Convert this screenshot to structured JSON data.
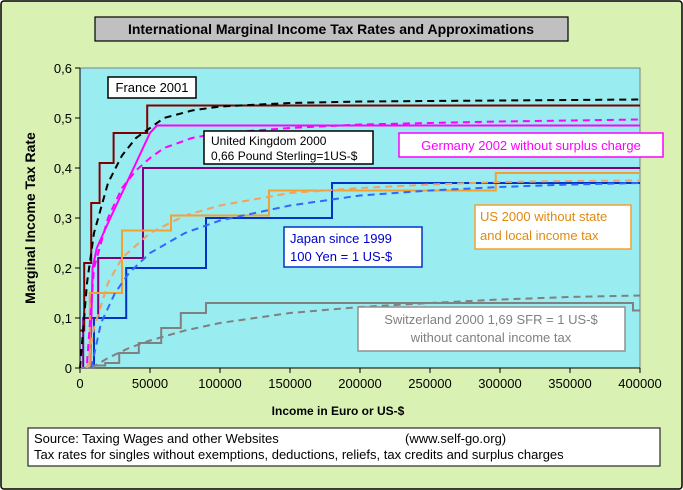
{
  "title": "International Marginal  Income Tax Rates and Approximations",
  "source": {
    "line1_left": "Source: Taxing Wages and other Websites",
    "line1_right": "(www.self-go.org)",
    "line2": "Tax rates for singles  without exemptions, deductions, reliefs, tax credits and surplus charges"
  },
  "labels": {
    "france": "France 2001",
    "uk_line1": "United Kingdom 2000",
    "uk_line2": "0,66 Pound Sterling=1US-$",
    "germany": "Germany 2002 without surplus charge",
    "us_line1": "US 2000 without state",
    "us_line2": "and local income tax",
    "japan_line1": "Japan since 1999",
    "japan_line2": "100 Yen = 1 US-$",
    "swiss_line1": "Switzerland 2000  1,69 SFR = 1 US-$",
    "swiss_line2": "without cantonal income tax"
  },
  "colors": {
    "page_bg": "#d9f2b4",
    "plot_bg": "#99ecf0",
    "france": "#800000",
    "uk": "#800080",
    "germany": "#ff00ff",
    "us": "#f4a030",
    "japan": "#0033cc",
    "switzerland": "#808080",
    "france_approx": "#000000",
    "germany_approx": "#ff00ff",
    "us_approx": "#f4a060",
    "japan_approx": "#3366ff",
    "switzerland_approx": "#808080"
  },
  "chart_data": {
    "type": "line",
    "title": "International Marginal  Income Tax Rates and Approximations",
    "xlabel": "Income in Euro or US-$",
    "ylabel": "Marginal Income Tax Rate",
    "xlim": [
      0,
      400000
    ],
    "ylim": [
      0,
      0.6
    ],
    "xticks": [
      0,
      50000,
      100000,
      150000,
      200000,
      250000,
      300000,
      350000,
      400000
    ],
    "xtick_labels": [
      "0",
      "50000",
      "100000",
      "150000",
      "200000",
      "250000",
      "300000",
      "350000",
      "400000"
    ],
    "yticks": [
      0,
      0.1,
      0.2,
      0.3,
      0.4,
      0.5,
      0.6
    ],
    "ytick_labels": [
      "0",
      "0,1",
      "0,2",
      "0,3",
      "0,4",
      "0,5",
      "0,6"
    ],
    "grid": false,
    "series": [
      {
        "name": "France 2001",
        "style": "step",
        "color_key": "france",
        "x": [
          0,
          3000,
          3000,
          8000,
          8000,
          14000,
          14000,
          24000,
          24000,
          38000,
          38000,
          48000,
          48000,
          400000
        ],
        "y": [
          0.075,
          0.075,
          0.21,
          0.21,
          0.33,
          0.33,
          0.41,
          0.41,
          0.47,
          0.47,
          0.47,
          0.47,
          0.525,
          0.525
        ]
      },
      {
        "name": "United Kingdom 2000",
        "style": "step",
        "color_key": "uk",
        "x": [
          0,
          2300,
          2300,
          13000,
          13000,
          45000,
          45000,
          400000
        ],
        "y": [
          0,
          0,
          0.1,
          0.1,
          0.22,
          0.22,
          0.4,
          0.4
        ]
      },
      {
        "name": "Germany 2002 without surplus charge",
        "style": "line",
        "color_key": "germany",
        "x": [
          0,
          7300,
          9000,
          12000,
          20000,
          30000,
          40000,
          50000,
          55000,
          400000
        ],
        "y": [
          0,
          0,
          0.2,
          0.24,
          0.29,
          0.35,
          0.41,
          0.47,
          0.485,
          0.485
        ]
      },
      {
        "name": "US 2000 without state and local income tax",
        "style": "step",
        "color_key": "us",
        "x": [
          0,
          7000,
          7000,
          28000,
          28000,
          30000,
          30000,
          65000,
          65000,
          135000,
          135000,
          297000,
          297000,
          400000
        ],
        "y": [
          0,
          0,
          0.15,
          0.15,
          0.15,
          0.15,
          0.275,
          0.275,
          0.305,
          0.305,
          0.355,
          0.355,
          0.39,
          0.39
        ]
      },
      {
        "name": "Japan since 1999",
        "style": "step",
        "color_key": "japan",
        "x": [
          0,
          10000,
          10000,
          33000,
          33000,
          90000,
          90000,
          180000,
          180000,
          400000
        ],
        "y": [
          0,
          0,
          0.1,
          0.1,
          0.2,
          0.2,
          0.3,
          0.3,
          0.37,
          0.37
        ]
      },
      {
        "name": "Switzerland 2000",
        "style": "step",
        "color_key": "switzerland",
        "x": [
          0,
          10000,
          10000,
          18000,
          18000,
          28000,
          28000,
          42000,
          42000,
          58000,
          58000,
          72000,
          72000,
          90000,
          90000,
          395000,
          395000,
          400000
        ],
        "y": [
          0,
          0,
          0.005,
          0.005,
          0.01,
          0.01,
          0.03,
          0.03,
          0.05,
          0.05,
          0.08,
          0.08,
          0.11,
          0.11,
          0.13,
          0.13,
          0.115,
          0.115
        ]
      },
      {
        "name": "France approximation",
        "style": "dashed",
        "color_key": "france_approx",
        "x": [
          0,
          5000,
          10000,
          20000,
          30000,
          40000,
          60000,
          80000,
          100000,
          150000,
          200000,
          300000,
          400000
        ],
        "y": [
          0,
          0.17,
          0.27,
          0.37,
          0.425,
          0.46,
          0.5,
          0.515,
          0.523,
          0.53,
          0.533,
          0.535,
          0.537
        ]
      },
      {
        "name": "Germany approximation",
        "style": "dashed",
        "color_key": "germany_approx",
        "x": [
          5000,
          10000,
          20000,
          30000,
          40000,
          50000,
          60000,
          80000,
          100000,
          150000,
          200000,
          300000,
          400000
        ],
        "y": [
          0.01,
          0.2,
          0.3,
          0.36,
          0.395,
          0.42,
          0.44,
          0.46,
          0.47,
          0.48,
          0.487,
          0.493,
          0.497
        ]
      },
      {
        "name": "US approximation",
        "style": "dashed",
        "color_key": "us_approx",
        "x": [
          5000,
          10000,
          20000,
          30000,
          50000,
          75000,
          100000,
          150000,
          200000,
          250000,
          300000,
          350000,
          400000
        ],
        "y": [
          0,
          0.08,
          0.17,
          0.22,
          0.27,
          0.305,
          0.325,
          0.35,
          0.36,
          0.367,
          0.372,
          0.374,
          0.375
        ]
      },
      {
        "name": "Japan approximation",
        "style": "dashed",
        "color_key": "japan_approx",
        "x": [
          8000,
          15000,
          25000,
          35000,
          50000,
          75000,
          100000,
          150000,
          200000,
          250000,
          300000,
          350000,
          400000
        ],
        "y": [
          0,
          0.09,
          0.15,
          0.19,
          0.23,
          0.27,
          0.295,
          0.325,
          0.345,
          0.355,
          0.362,
          0.367,
          0.37
        ]
      },
      {
        "name": "Switzerland approximation",
        "style": "dashed",
        "color_key": "switzerland_approx",
        "x": [
          8000,
          20000,
          35000,
          50000,
          75000,
          100000,
          150000,
          200000,
          250000,
          300000,
          350000,
          400000
        ],
        "y": [
          0,
          0.02,
          0.04,
          0.055,
          0.075,
          0.09,
          0.11,
          0.122,
          0.13,
          0.137,
          0.142,
          0.145
        ]
      }
    ]
  }
}
